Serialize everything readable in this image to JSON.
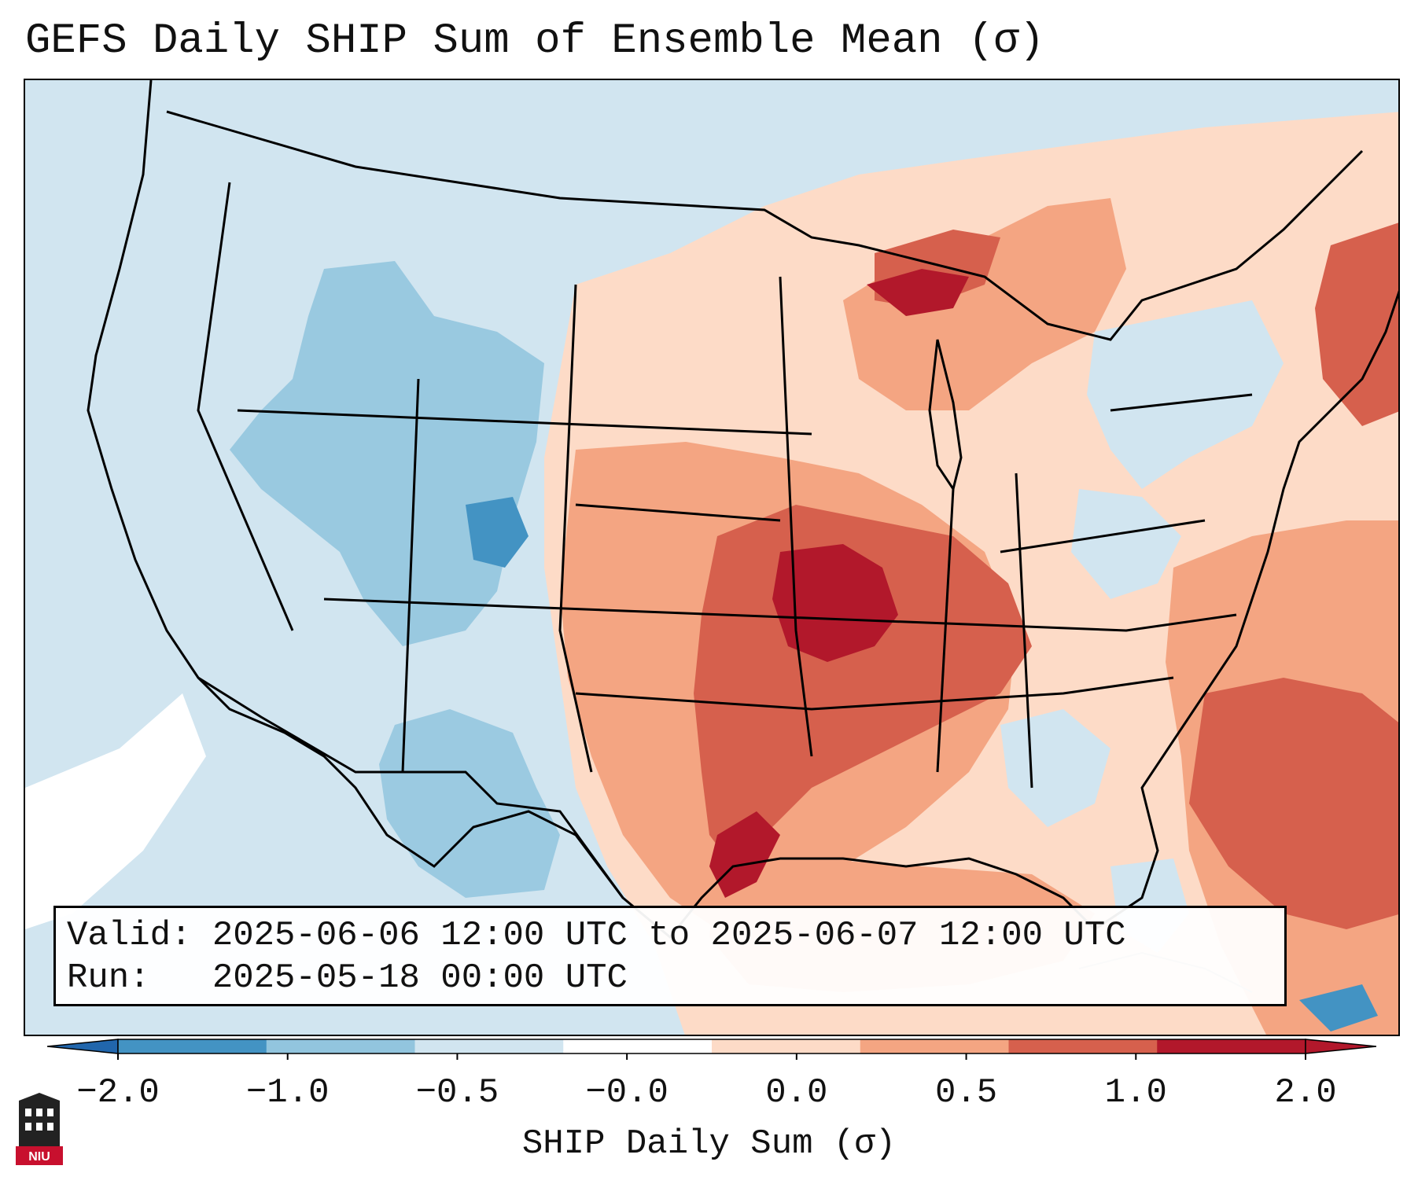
{
  "title": "GEFS Daily SHIP Sum of Ensemble Mean (σ)",
  "info": {
    "valid_label": "Valid:",
    "valid_value": "2025-06-06 12:00 UTC to 2025-06-07 12:00 UTC",
    "run_label": "Run:",
    "run_value": "2025-05-18 00:00 UTC"
  },
  "colorbar": {
    "label": "SHIP Daily Sum (σ)",
    "ticks": [
      "−2.0",
      "−1.0",
      "−0.5",
      "−0.0",
      "0.0",
      "0.5",
      "1.0",
      "2.0"
    ],
    "colors": [
      "#4393c3",
      "#92c5de",
      "#d1e5f0",
      "#ffffff",
      "#fddbc7",
      "#f4a582",
      "#d6604d",
      "#b2182b"
    ],
    "under_color": "#2166ac",
    "over_color": "#b2182b"
  },
  "palette": {
    "strong_negative": "#92c5de",
    "weak_negative": "#d1e5f0",
    "neutral": "#ffffff",
    "weak_positive": "#fddbc7",
    "moderate_positive": "#f4a582",
    "strong_positive": "#d6604d",
    "extreme_positive": "#b2182b"
  },
  "logo": {
    "text": "NIU",
    "icon": "university-tower-icon"
  }
}
